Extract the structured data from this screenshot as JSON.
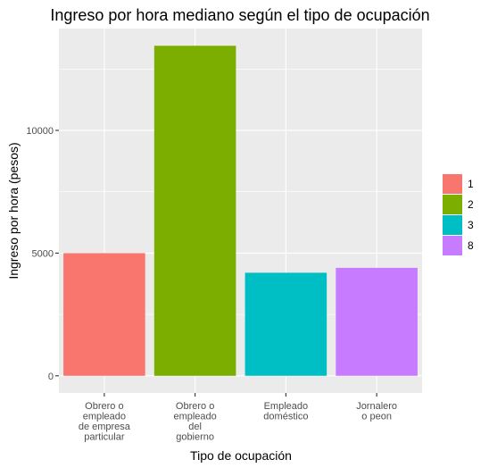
{
  "chart_data": {
    "type": "bar",
    "title": "Ingreso por hora mediano según el tipo de ocupación",
    "xlabel": "Tipo de ocupación",
    "ylabel": "Ingreso por hora (pesos)",
    "categories": [
      [
        "Obrero o",
        "empleado",
        "de empresa",
        "particular"
      ],
      [
        "Obrero o",
        "empleado",
        "del",
        "gobierno"
      ],
      [
        "Empleado",
        "doméstico"
      ],
      [
        "Jornalero",
        "o peon"
      ]
    ],
    "values": [
      5000,
      13450,
      4200,
      4400
    ],
    "fill_groups": [
      "1",
      "2",
      "3",
      "8"
    ],
    "colors": [
      "#F8766D",
      "#7CAE00",
      "#00BFC4",
      "#C77CFF"
    ],
    "ylim": [
      -700,
      14150
    ],
    "yticks": [
      0,
      5000,
      10000
    ],
    "ytick_labels": [
      "0",
      "5000",
      "10000"
    ],
    "grid": true,
    "legend": {
      "position": "right",
      "entries": [
        "1",
        "2",
        "3",
        "8"
      ]
    },
    "panel_color": "#EBEBEB"
  }
}
